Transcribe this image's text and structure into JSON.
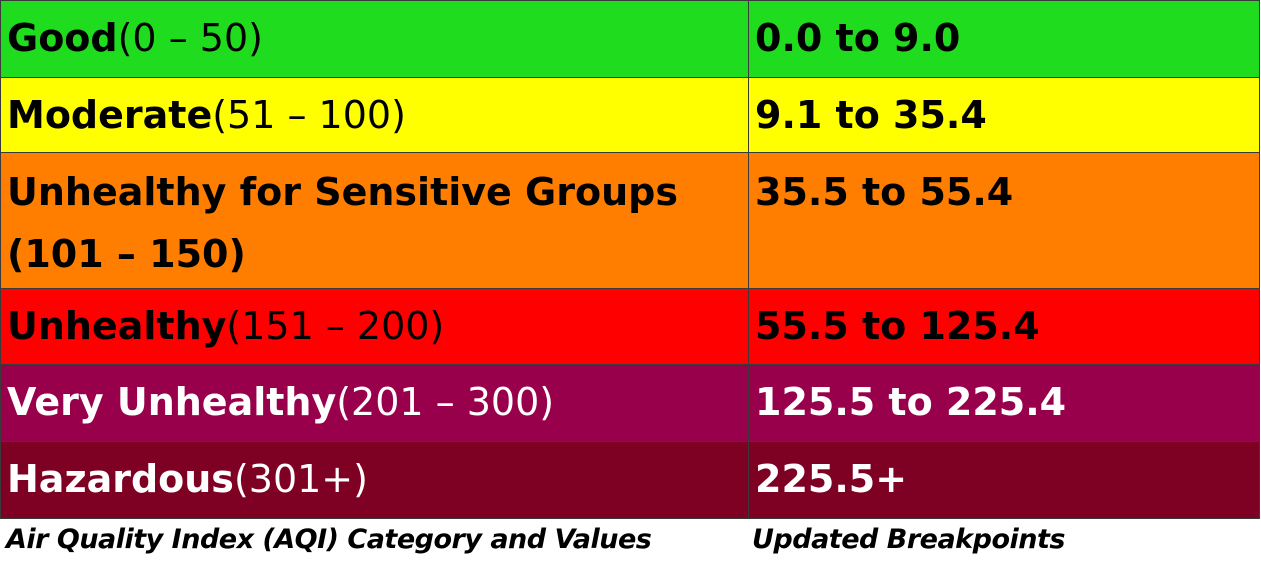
{
  "rows": [
    {
      "category": "Good",
      "range": "(0 – 50)",
      "breakpoint": "0.0 to 9.0",
      "bg": "#1fdc1f",
      "fg": "#000000"
    },
    {
      "category": "Moderate",
      "range": "(51 – 100)",
      "breakpoint": "9.1 to 35.4",
      "bg": "#ffff00",
      "fg": "#000000"
    },
    {
      "category": "Unhealthy for Sensitive Groups (101 – 150)",
      "range": "",
      "breakpoint": "35.5 to 55.4",
      "bg": "#ff7e00",
      "fg": "#000000"
    },
    {
      "category": "Unhealthy",
      "range": "(151 – 200)",
      "breakpoint": "55.5 to 125.4",
      "bg": "#ff0000",
      "fg": "#000000"
    },
    {
      "category": "Very Unhealthy",
      "range": "(201 – 300)",
      "breakpoint": "125.5 to 225.4",
      "bg": "#99004c",
      "fg": "#ffffff"
    },
    {
      "category": "Hazardous",
      "range": "(301+)",
      "breakpoint": "225.5+",
      "bg": "#7e0023",
      "fg": "#ffffff"
    }
  ],
  "captions": {
    "category_column": "Air Quality Index (AQI) Category and Values",
    "breakpoint_column": "Updated  Breakpoints"
  }
}
